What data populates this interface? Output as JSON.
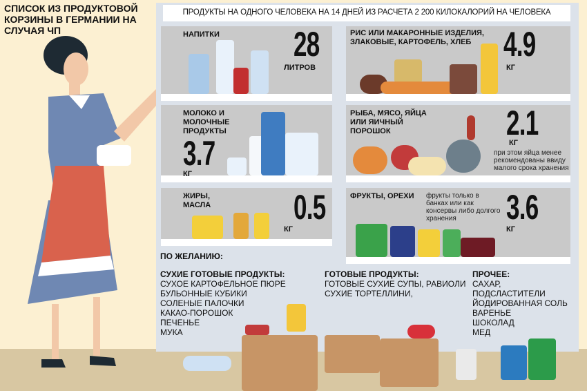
{
  "title": "СПИСОК ИЗ ПРОДУКТОВОЙ КОРЗИНЫ В ГЕРМАНИИ НА СЛУЧАЯ ЧП",
  "subtitle": "ПРОДУКТЫ НА ОДНОГО ЧЕЛОВЕКА НА 14 ДНЕЙ ИЗ РАСЧЕТА 2 200 КИЛОКАЛОРИЙ НА ЧЕЛОВЕКА",
  "categories": [
    {
      "label": "НАПИТКИ",
      "value": "28",
      "unit": "ЛИТРОВ"
    },
    {
      "label": "РИС ИЛИ МАКАРОННЫЕ ИЗДЕЛИЯ, ЗЛАКОВЫЕ, КАРТОФЕЛЬ, ХЛЕБ",
      "value": "4.9",
      "unit": "КГ"
    },
    {
      "label": "МОЛОКО И МОЛОЧНЫЕ ПРОДУКТЫ",
      "value": "3.7",
      "unit": "КГ"
    },
    {
      "label": "РЫБА, МЯСО, ЯЙЦА ИЛИ ЯИЧНЫЙ ПОРОШОК",
      "value": "2.1",
      "unit": "КГ",
      "note": "при этом яйца менее рекомендованы ввиду малого срока хранения"
    },
    {
      "label": "ЖИРЫ, МАСЛА",
      "value": "0.5",
      "unit": "КГ"
    },
    {
      "label": "ФРУКТЫ, ОРЕХИ",
      "value": "3.6",
      "unit": "КГ",
      "note": "фрукты только в банках или как консервы либо долгого хранения"
    }
  ],
  "optional": {
    "heading": "ПО ЖЕЛАНИЮ:",
    "groups": [
      {
        "heading": "СУХИЕ ГОТОВЫЕ ПРОДУКТЫ:",
        "items": [
          "СУХОЕ КАРТОФЕЛЬНОЕ ПЮРЕ",
          "БУЛЬОННЫЕ КУБИКИ",
          "СОЛЕНЫЕ ПАЛОЧКИ",
          "КАКАО-ПОРОШОК",
          "ПЕЧЕНЬЕ",
          "МУКА"
        ]
      },
      {
        "heading": "ГОТОВЫЕ ПРОДУКТЫ:",
        "items": [
          "ГОТОВЫЕ СУХИЕ СУПЫ, РАВИОЛИ",
          "СУХИЕ ТОРТЕЛЛИНИ,"
        ]
      },
      {
        "heading": "ПРОЧЕЕ:",
        "items": [
          "САХАР, ПОДСЛАСТИТЕЛИ",
          "ЙОДИРОВАННАЯ СОЛЬ",
          "ВАРЕНЬЕ",
          "ШОКОЛАД",
          "МЕД"
        ]
      }
    ]
  },
  "colors": {
    "background": "#fcf0d2",
    "panel": "#dce2ea",
    "shelf": "#c9c9c9",
    "floor": "#d8c7a2"
  }
}
